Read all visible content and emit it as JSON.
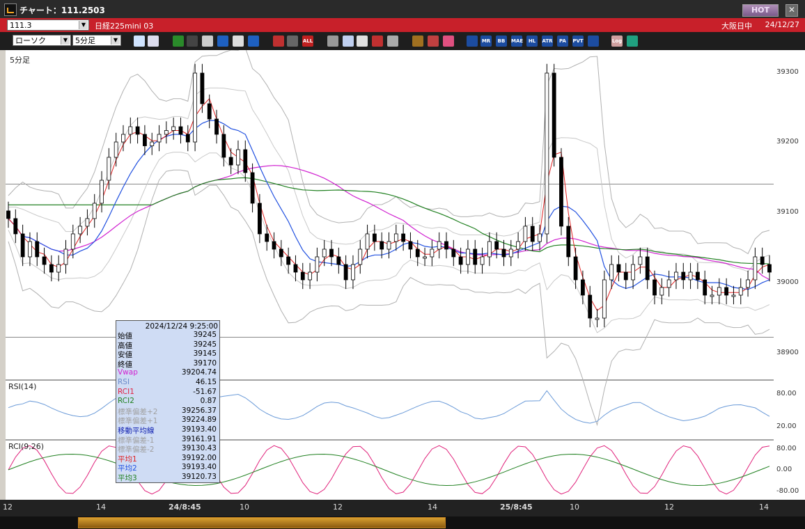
{
  "window": {
    "title": "チャート：111.2503",
    "hot_label": "HOT",
    "close_label": "✕"
  },
  "infobar": {
    "code": "111.3",
    "symbol": "日経225mini 03",
    "exchange": "大阪日中",
    "date": "24/12/27"
  },
  "controls": {
    "chart_type": "ローソク",
    "interval": "5分足"
  },
  "toolbar_icons": [
    "zoom-icon",
    "crosshair-icon",
    "pen-icon",
    "wrench-icon",
    "cursor-icon",
    "arrow-icon",
    "note-icon",
    "trash-icon",
    "candle-icon",
    "bar-icon",
    "all-icon",
    "stamp-icon",
    "search-icon",
    "chart-icon",
    "settings-icon",
    "info-icon",
    "gear-icon",
    "pencil-icon",
    "color-icon",
    "ma-icon",
    "mr-icon",
    "bb-icon",
    "mae-icon",
    "hl-icon",
    "atr-icon",
    "pa-icon",
    "pvt-icon",
    "frame-icon",
    "log-icon",
    "export-icon"
  ],
  "toolbar_text": {
    "mr": "MR",
    "bb": "BB",
    "mae": "MAE",
    "hl": "HL",
    "atr": "ATR",
    "pa": "PA",
    "pvt": "PVT",
    "log": "Log",
    "all": "ALL"
  },
  "main_panel": {
    "label": "5分足",
    "y_ticks": [
      "39300",
      "39200",
      "39100",
      "39000",
      "38900"
    ]
  },
  "rsi_panel": {
    "label": "RSI(14)",
    "y_ticks": [
      "80.00",
      "20.00"
    ]
  },
  "rci_panel": {
    "label": "RCI(9,26)",
    "y_ticks": [
      "80.00",
      "0.00",
      "-80.00"
    ]
  },
  "x_ticks": [
    "12",
    "14",
    "24/8:45",
    "10",
    "12",
    "14",
    "25/8:45",
    "10",
    "12",
    "14"
  ],
  "infobox": {
    "header": "2024/12/24 9:25:00",
    "rows": [
      {
        "k": "始値",
        "v": "39245",
        "c": "#000"
      },
      {
        "k": "高値",
        "v": "39245",
        "c": "#000"
      },
      {
        "k": "安値",
        "v": "39145",
        "c": "#000"
      },
      {
        "k": "終値",
        "v": "39170",
        "c": "#000"
      },
      {
        "k": "Vwap",
        "v": "39204.74",
        "c": "#d020d0"
      },
      {
        "k": "RSI",
        "v": "46.15",
        "c": "#6a8ac8"
      },
      {
        "k": "RCI1",
        "v": "-51.67",
        "c": "#e02040"
      },
      {
        "k": "RCI2",
        "v": "0.87",
        "c": "#208020"
      },
      {
        "k": "標準偏差+2",
        "v": "39256.37",
        "c": "#a0a0a0"
      },
      {
        "k": "標準偏差+1",
        "v": "39224.89",
        "c": "#a0a0a0"
      },
      {
        "k": "移動平均線",
        "v": "39193.40",
        "c": "#1020b0"
      },
      {
        "k": "標準偏差-1",
        "v": "39161.91",
        "c": "#a0a0a0"
      },
      {
        "k": "標準偏差-2",
        "v": "39130.43",
        "c": "#a0a0a0"
      },
      {
        "k": "平均1",
        "v": "39192.00",
        "c": "#e02020"
      },
      {
        "k": "平均2",
        "v": "39193.40",
        "c": "#2050e0"
      },
      {
        "k": "平均3",
        "v": "39120.73",
        "c": "#208020"
      }
    ]
  },
  "colors": {
    "titlebar": "#2a2a2a",
    "infobar": "#c8202a",
    "vwap": "#d020d0",
    "ma_short": "#e02020",
    "ma_mid": "#2050e0",
    "ma_long": "#208020",
    "bollinger": "#a0a0a0",
    "rsi": "#6a9ad8",
    "rci1": "#e0207a",
    "rci2": "#208020"
  },
  "chart_data": [
    {
      "type": "candlestick",
      "title": "5分足",
      "ylim": [
        38880,
        39310
      ],
      "x_ticks": [
        "12",
        "14",
        "24/8:45",
        "10",
        "12",
        "14",
        "25/8:45",
        "10",
        "12",
        "14"
      ],
      "close_approx": [
        39090,
        39070,
        39040,
        39060,
        39040,
        39030,
        39020,
        39030,
        39050,
        39070,
        39080,
        39090,
        39110,
        39140,
        39170,
        39190,
        39200,
        39210,
        39200,
        39185,
        39190,
        39200,
        39205,
        39210,
        39200,
        39190,
        39280,
        39240,
        39220,
        39200,
        39170,
        39160,
        39180,
        39150,
        39110,
        39070,
        39060,
        39050,
        39040,
        39030,
        39020,
        39010,
        39020,
        39040,
        39050,
        39040,
        39030,
        39010,
        39030,
        39050,
        39070,
        39060,
        39050,
        39060,
        39070,
        39060,
        39050,
        39040,
        39040,
        39050,
        39060,
        39050,
        39040,
        39030,
        39050,
        39030,
        39040,
        39060,
        39050,
        39040,
        39050,
        39060,
        39080,
        39060,
        39070,
        39280,
        39170,
        39080,
        39040,
        39010,
        38990,
        38960,
        38960,
        39010,
        39030,
        39020,
        39010,
        39030,
        39040,
        39010,
        38990,
        39000,
        39010,
        39020,
        39010,
        39020,
        39010,
        38990,
        38990,
        39000,
        38990,
        38990,
        39000,
        39010,
        39040,
        39030,
        39020
      ]
    },
    {
      "type": "line",
      "title": "RSI(14)",
      "ylim": [
        0,
        100
      ]
    },
    {
      "type": "line",
      "title": "RCI(9,26)",
      "ylim": [
        -100,
        100
      ]
    }
  ]
}
